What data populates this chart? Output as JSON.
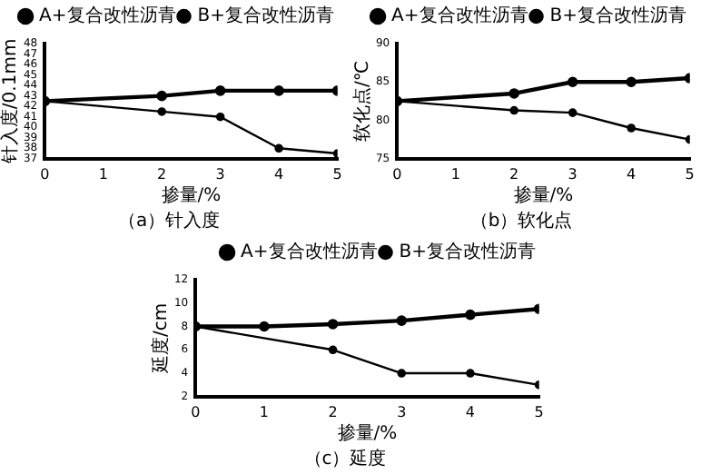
{
  "chart_data": [
    {
      "type": "line",
      "title": "（a）针入度",
      "xlabel": "掺量/%",
      "ylabel": "针入度/0.1mm",
      "xlim": [
        0,
        5
      ],
      "xticks": [
        0,
        1,
        2,
        3,
        4,
        5
      ],
      "ylim": [
        37,
        48
      ],
      "yticks": [
        37,
        38,
        39,
        40,
        41,
        42,
        43,
        44,
        45,
        46,
        47,
        48
      ],
      "legend": "top right",
      "marker": "circle",
      "grid": false,
      "series": [
        {
          "name": "A+复合改性沥青",
          "color": "#000000",
          "x": [
            0,
            2,
            3,
            4,
            5
          ],
          "values": [
            42.5,
            43,
            43.5,
            43.5,
            43.5
          ]
        },
        {
          "name": "B+复合改性沥青",
          "color": "#000000",
          "x": [
            0,
            2,
            3,
            4,
            5
          ],
          "values": [
            42.5,
            41.5,
            41,
            38,
            37.5
          ]
        }
      ]
    },
    {
      "type": "line",
      "title": "（b）软化点",
      "xlabel": "掺量/%",
      "ylabel": "软化点/℃",
      "xlim": [
        0,
        5
      ],
      "xticks": [
        0,
        1,
        2,
        3,
        4,
        5
      ],
      "ylim": [
        75,
        90
      ],
      "yticks": [
        75,
        80,
        85,
        90
      ],
      "legend": "top right",
      "marker": "circle",
      "grid": false,
      "series": [
        {
          "name": "A+复合改性沥青",
          "color": "#000000",
          "x": [
            0,
            2,
            3,
            4,
            5
          ],
          "values": [
            82.5,
            83.5,
            85,
            85,
            85.5
          ]
        },
        {
          "name": "B+复合改性沥青",
          "color": "#000000",
          "x": [
            0,
            2,
            3,
            4,
            5
          ],
          "values": [
            82.5,
            81.3,
            81,
            79,
            77.5
          ]
        }
      ]
    },
    {
      "type": "line",
      "title": "（c）延度",
      "xlabel": "掺量/%",
      "ylabel": "延度/cm",
      "xlim": [
        0,
        5
      ],
      "xticks": [
        0,
        1,
        2,
        3,
        4,
        5
      ],
      "ylim": [
        2,
        12
      ],
      "yticks": [
        2,
        4,
        6,
        8,
        10,
        12
      ],
      "legend": "top right",
      "marker": "circle",
      "grid": false,
      "series": [
        {
          "name": "A+复合改性沥青",
          "color": "#000000",
          "x": [
            0,
            1,
            2,
            3,
            4,
            5
          ],
          "values": [
            8,
            8,
            8.2,
            8.5,
            9,
            9.5
          ]
        },
        {
          "name": "B+复合改性沥青",
          "color": "#000000",
          "x": [
            0,
            2,
            3,
            4,
            5
          ],
          "values": [
            8,
            6,
            4,
            4,
            3
          ]
        }
      ]
    }
  ]
}
